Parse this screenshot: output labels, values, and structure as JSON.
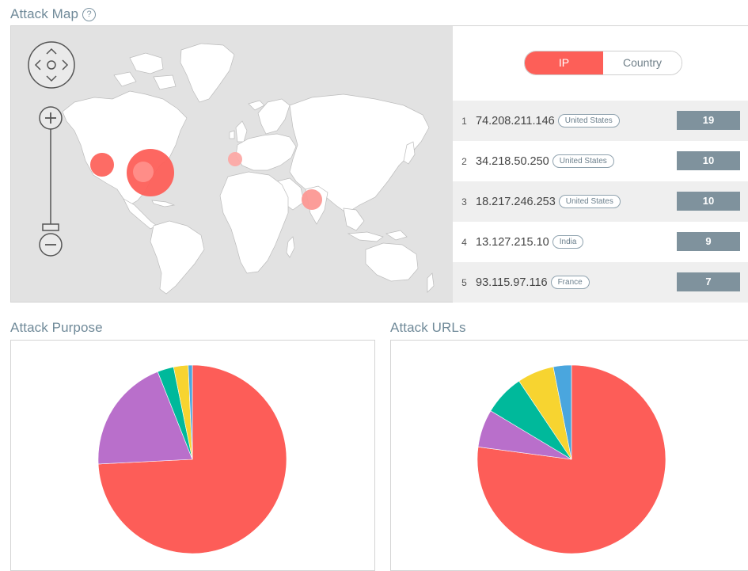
{
  "attack_map": {
    "title": "Attack Map",
    "help_icon": "?"
  },
  "toggle": {
    "ip_label": "IP",
    "country_label": "Country",
    "active": "ip"
  },
  "ranking": [
    {
      "rank": "1",
      "ip": "74.208.211.146",
      "country": "United States",
      "count": "19"
    },
    {
      "rank": "2",
      "ip": "34.218.50.250",
      "country": "United States",
      "count": "10"
    },
    {
      "rank": "3",
      "ip": "18.217.246.253",
      "country": "United States",
      "count": "10"
    },
    {
      "rank": "4",
      "ip": "13.127.215.10",
      "country": "India",
      "count": "9"
    },
    {
      "rank": "5",
      "ip": "93.115.97.116",
      "country": "France",
      "count": "7"
    }
  ],
  "attack_purpose": {
    "title": "Attack Purpose"
  },
  "attack_urls": {
    "title": "Attack URLs"
  },
  "colors": {
    "accent": "#fd5f58",
    "map_bg": "#e2e2e2",
    "land": "#ffffff",
    "count_badge": "#7f929d",
    "pie_red": "#fd5d58",
    "pie_purple": "#b96fcb",
    "pie_teal": "#00b99b",
    "pie_yellow": "#f7d430",
    "pie_blue": "#4aa6de"
  },
  "chart_data": [
    {
      "type": "pie",
      "title": "",
      "slices": [
        {
          "name": "",
          "value": 74.2,
          "color": "#fd5d58"
        },
        {
          "name": "",
          "value": 19.8,
          "color": "#b96fcb"
        },
        {
          "name": "",
          "value": 2.8,
          "color": "#00b99b"
        },
        {
          "name": "",
          "value": 2.5,
          "color": "#f7d430"
        },
        {
          "name": "",
          "value": 0.7,
          "color": "#4aa6de"
        }
      ]
    },
    {
      "type": "pie",
      "title": "",
      "slices": [
        {
          "name": "",
          "value": 77.1,
          "color": "#fd5d58"
        },
        {
          "name": "",
          "value": 6.5,
          "color": "#b96fcb"
        },
        {
          "name": "",
          "value": 7.0,
          "color": "#00b99b"
        },
        {
          "name": "",
          "value": 6.3,
          "color": "#f7d430"
        },
        {
          "name": "",
          "value": 3.1,
          "color": "#4aa6de"
        }
      ]
    }
  ]
}
